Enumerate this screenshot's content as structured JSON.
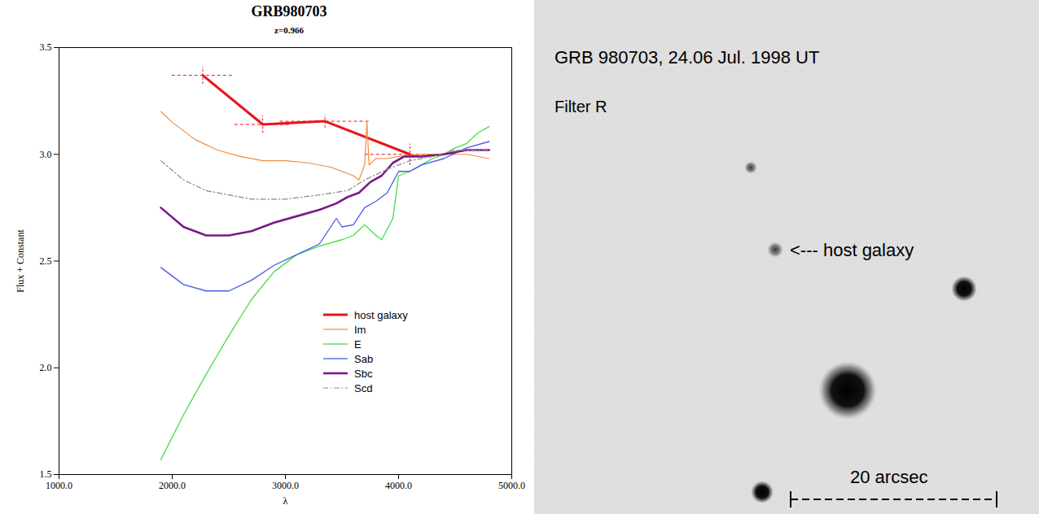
{
  "chart_data": {
    "type": "line",
    "title": "GRB980703",
    "subtitle": "z=0.966",
    "x_label": "λ",
    "y_label": "Flux + Constant",
    "xlim": [
      1000,
      5000
    ],
    "xticks": [
      {
        "value": 1000,
        "label": "1000.0"
      },
      {
        "value": 2000,
        "label": "2000.0"
      },
      {
        "value": 3000,
        "label": "3000.0"
      },
      {
        "value": 4000,
        "label": "4000.0"
      },
      {
        "value": 5000,
        "label": "5000.0"
      }
    ],
    "ylim": [
      1.5,
      3.5
    ],
    "yticks": [
      1.5,
      {
        "value": 2,
        "label": "2.0"
      },
      2.5,
      {
        "value": 3,
        "label": "3.0"
      },
      3.5
    ],
    "legend": "bottom",
    "series": [
      {
        "name": "host galaxy",
        "color": "#e8141c",
        "x": [
          2270,
          2800,
          3350,
          4100
        ],
        "values": [
          3.37,
          3.14,
          3.155,
          3.0
        ],
        "xerr": [
          275,
          250,
          400,
          400
        ],
        "yerr": [
          0.04,
          0.04,
          0.03,
          0.05
        ]
      },
      {
        "name": "Im",
        "color": "#f08c3c",
        "x": [
          1900,
          2000,
          2200,
          2400,
          2600,
          2800,
          3000,
          3200,
          3400,
          3500,
          3600,
          3650,
          3700,
          3720,
          3740,
          3800,
          3900,
          4000,
          4200,
          4400,
          4600,
          4800
        ],
        "values": [
          3.2,
          3.15,
          3.07,
          3.02,
          2.99,
          2.97,
          2.97,
          2.96,
          2.94,
          2.92,
          2.9,
          2.88,
          2.95,
          3.15,
          2.95,
          2.98,
          2.98,
          2.99,
          3.0,
          3.0,
          3.0,
          2.98
        ]
      },
      {
        "name": "E",
        "color": "#44dd44",
        "x": [
          1900,
          2100,
          2300,
          2500,
          2700,
          2900,
          3100,
          3300,
          3500,
          3600,
          3700,
          3800,
          3850,
          3950,
          4000,
          4100,
          4200,
          4300,
          4400,
          4500,
          4600,
          4700,
          4800
        ],
        "values": [
          1.57,
          1.78,
          1.97,
          2.15,
          2.32,
          2.45,
          2.53,
          2.57,
          2.6,
          2.62,
          2.67,
          2.62,
          2.6,
          2.7,
          2.9,
          2.92,
          2.95,
          2.98,
          3.0,
          3.03,
          3.05,
          3.1,
          3.13
        ]
      },
      {
        "name": "Sab",
        "color": "#4a5ae8",
        "x": [
          1900,
          2100,
          2300,
          2500,
          2700,
          2900,
          3100,
          3300,
          3450,
          3500,
          3600,
          3700,
          3800,
          3900,
          4000,
          4100,
          4200,
          4400,
          4600,
          4800
        ],
        "values": [
          2.47,
          2.39,
          2.36,
          2.36,
          2.41,
          2.48,
          2.53,
          2.58,
          2.7,
          2.66,
          2.67,
          2.75,
          2.78,
          2.82,
          2.92,
          2.92,
          2.95,
          2.98,
          3.03,
          3.06
        ]
      },
      {
        "name": "Sbc",
        "color": "#7a1a8a",
        "x": [
          1900,
          2100,
          2300,
          2500,
          2700,
          2900,
          3100,
          3300,
          3450,
          3550,
          3650,
          3750,
          3850,
          3950,
          4050,
          4200,
          4400,
          4600,
          4800
        ],
        "values": [
          2.75,
          2.66,
          2.62,
          2.62,
          2.64,
          2.68,
          2.71,
          2.74,
          2.77,
          2.8,
          2.82,
          2.87,
          2.9,
          2.96,
          2.99,
          2.99,
          3.0,
          3.02,
          3.02
        ]
      },
      {
        "name": "Scd",
        "color": "#888888",
        "line_style": "dashdot",
        "x": [
          1900,
          2100,
          2300,
          2500,
          2700,
          3000,
          3300,
          3550,
          3700,
          3900,
          4100,
          4300,
          4500,
          4800
        ],
        "values": [
          2.97,
          2.88,
          2.83,
          2.81,
          2.79,
          2.79,
          2.81,
          2.83,
          2.88,
          2.93,
          2.97,
          2.99,
          3.02,
          3.02
        ]
      }
    ]
  },
  "image": {
    "title": "GRB 980703, 24.06 Jul. 1998 UT",
    "filter": "Filter R",
    "annotation": "<--- host galaxy",
    "scale_bar": "20 arcsec"
  }
}
